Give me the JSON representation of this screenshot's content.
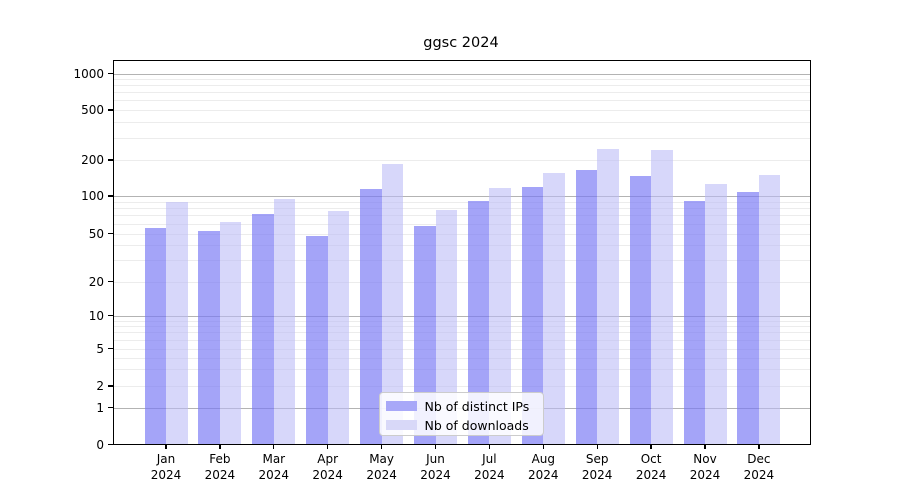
{
  "chart_data": {
    "type": "bar",
    "title": "ggsc 2024",
    "x_months": [
      "Jan",
      "Feb",
      "Mar",
      "Apr",
      "May",
      "Jun",
      "Jul",
      "Aug",
      "Sep",
      "Oct",
      "Nov",
      "Dec"
    ],
    "x_year": "2024",
    "series": [
      {
        "name": "Nb of distinct IPs",
        "color": "#a8a8f8",
        "values": [
          55,
          52,
          72,
          48,
          114,
          57,
          92,
          118,
          165,
          146,
          91,
          108
        ]
      },
      {
        "name": "Nb of downloads",
        "color": "#d8d8f8",
        "values": [
          90,
          62,
          95,
          76,
          186,
          77,
          117,
          155,
          245,
          240,
          125,
          150
        ]
      }
    ],
    "y_axis": {
      "scale": "symlog",
      "tick_values": [
        0,
        1,
        2,
        5,
        10,
        20,
        50,
        100,
        200,
        500,
        1000
      ],
      "tick_labels": [
        "0",
        "1",
        "2",
        "5",
        "10",
        "20",
        "50",
        "100",
        "200",
        "500",
        "1000"
      ],
      "ylim": [
        0,
        1300
      ]
    },
    "legend": {
      "position": "lower center",
      "entries": [
        "Nb of distinct IPs",
        "Nb of downloads"
      ]
    },
    "grid": true,
    "background_color": "#ffffff",
    "text_color": "#000000"
  }
}
